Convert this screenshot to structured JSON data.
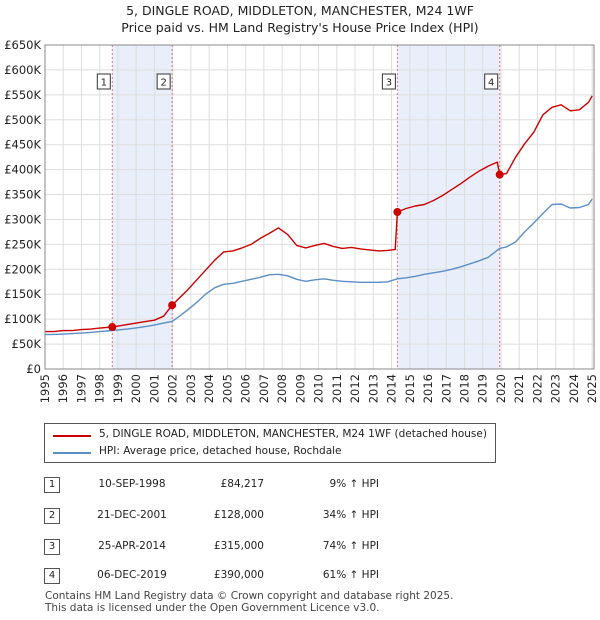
{
  "chart_data": {
    "type": "line",
    "title": "5, DINGLE ROAD, MIDDLETON, MANCHESTER, M24 1WF",
    "subtitle": "Price paid vs. HM Land Registry's House Price Index (HPI)",
    "xlim": [
      1995,
      2025.1
    ],
    "ylim": [
      0,
      650000
    ],
    "y_ticks": [
      0,
      50000,
      100000,
      150000,
      200000,
      250000,
      300000,
      350000,
      400000,
      450000,
      500000,
      550000,
      600000,
      650000
    ],
    "y_tick_labels": [
      "£0",
      "£50K",
      "£100K",
      "£150K",
      "£200K",
      "£250K",
      "£300K",
      "£350K",
      "£400K",
      "£450K",
      "£500K",
      "£550K",
      "£600K",
      "£650K"
    ],
    "x_ticks": [
      "1995",
      "1996",
      "1997",
      "1998",
      "1999",
      "2000",
      "2001",
      "2002",
      "2003",
      "2004",
      "2005",
      "2006",
      "2007",
      "2008",
      "2009",
      "2010",
      "2011",
      "2012",
      "2013",
      "2014",
      "2015",
      "2016",
      "2017",
      "2018",
      "2019",
      "2020",
      "2021",
      "2022",
      "2023",
      "2024",
      "2025"
    ],
    "grid": true,
    "colors": {
      "property": "#cc0000",
      "hpi": "#5b8fc7",
      "shade": "#e8eefa",
      "vline": "#dd7777"
    },
    "series": [
      {
        "name": "5, DINGLE ROAD, MIDDLETON, MANCHESTER, M24 1WF (detached house)",
        "x": [
          1995.0,
          1995.5,
          1996.0,
          1996.5,
          1997.0,
          1997.5,
          1998.0,
          1998.69,
          1999.0,
          1999.5,
          2000.0,
          2000.5,
          2001.0,
          2001.5,
          2001.97,
          2002.3,
          2002.8,
          2003.3,
          2003.8,
          2004.3,
          2004.8,
          2005.3,
          2005.8,
          2006.3,
          2006.8,
          2007.3,
          2007.8,
          2008.3,
          2008.8,
          2009.3,
          2009.8,
          2010.3,
          2010.8,
          2011.3,
          2011.8,
          2012.3,
          2012.8,
          2013.3,
          2013.8,
          2014.2,
          2014.32,
          2014.8,
          2015.3,
          2015.8,
          2016.3,
          2016.8,
          2017.3,
          2017.8,
          2018.3,
          2018.8,
          2019.3,
          2019.8,
          2019.93,
          2020.3,
          2020.8,
          2021.3,
          2021.8,
          2022.3,
          2022.8,
          2023.3,
          2023.8,
          2024.3,
          2024.8,
          2025.0
        ],
        "values": [
          75000,
          75000,
          77000,
          77000,
          79000,
          80000,
          82000,
          84217,
          86000,
          89000,
          92000,
          95000,
          98000,
          106000,
          128000,
          140000,
          158000,
          178000,
          198000,
          218000,
          235000,
          237000,
          243000,
          250000,
          262000,
          272000,
          283000,
          270000,
          248000,
          243000,
          248000,
          252000,
          246000,
          242000,
          244000,
          241000,
          239000,
          237000,
          238000,
          240000,
          315000,
          322000,
          327000,
          330000,
          338000,
          348000,
          360000,
          372000,
          385000,
          397000,
          407000,
          415000,
          390000,
          392000,
          425000,
          452000,
          475000,
          510000,
          525000,
          530000,
          518000,
          520000,
          535000,
          548000
        ]
      },
      {
        "name": "HPI: Average price, detached house, Rochdale",
        "x": [
          1995.0,
          1995.5,
          1996.0,
          1996.5,
          1997.0,
          1997.5,
          1998.0,
          1998.69,
          1999.0,
          1999.5,
          2000.0,
          2000.5,
          2001.0,
          2001.5,
          2001.97,
          2002.3,
          2002.8,
          2003.3,
          2003.8,
          2004.3,
          2004.8,
          2005.3,
          2005.8,
          2006.3,
          2006.8,
          2007.3,
          2007.8,
          2008.3,
          2008.8,
          2009.3,
          2009.8,
          2010.3,
          2010.8,
          2011.3,
          2011.8,
          2012.3,
          2012.8,
          2013.3,
          2013.8,
          2014.32,
          2014.8,
          2015.3,
          2015.8,
          2016.3,
          2016.8,
          2017.3,
          2017.8,
          2018.3,
          2018.8,
          2019.3,
          2019.93,
          2020.3,
          2020.8,
          2021.3,
          2021.8,
          2022.3,
          2022.8,
          2023.3,
          2023.8,
          2024.3,
          2024.8,
          2025.0
        ],
        "values": [
          69000,
          69500,
          70000,
          71000,
          72000,
          73500,
          75000,
          77300,
          78500,
          80000,
          82500,
          85000,
          88000,
          92000,
          95500,
          104000,
          118000,
          133000,
          150000,
          163000,
          170000,
          172000,
          176000,
          180000,
          184000,
          189000,
          190000,
          187000,
          180000,
          176000,
          179000,
          181000,
          178000,
          176000,
          175000,
          174000,
          174000,
          174000,
          175000,
          181000,
          183000,
          186000,
          190000,
          193000,
          196000,
          200000,
          205000,
          211000,
          217000,
          224000,
          242000,
          245000,
          255000,
          275000,
          293000,
          312000,
          330000,
          331000,
          323000,
          324000,
          330000,
          341000
        ]
      }
    ],
    "sales": [
      {
        "label": "1",
        "x": 1998.69,
        "value": 84217
      },
      {
        "label": "2",
        "x": 2001.97,
        "value": 128000
      },
      {
        "label": "3",
        "x": 2014.32,
        "value": 315000
      },
      {
        "label": "4",
        "x": 2019.93,
        "value": 390000
      }
    ],
    "shaded_spans": [
      [
        1998.69,
        2001.97
      ],
      [
        2014.32,
        2019.93
      ]
    ]
  },
  "legend": {
    "property_label": "5, DINGLE ROAD, MIDDLETON, MANCHESTER, M24 1WF (detached house)",
    "hpi_label": "HPI: Average price, detached house, Rochdale"
  },
  "transactions": [
    {
      "num": "1",
      "date": "10-SEP-1998",
      "price": "£84,217",
      "hpi": "9% ↑ HPI"
    },
    {
      "num": "2",
      "date": "21-DEC-2001",
      "price": "£128,000",
      "hpi": "34% ↑ HPI"
    },
    {
      "num": "3",
      "date": "25-APR-2014",
      "price": "£315,000",
      "hpi": "74% ↑ HPI"
    },
    {
      "num": "4",
      "date": "06-DEC-2019",
      "price": "£390,000",
      "hpi": "61% ↑ HPI"
    }
  ],
  "footer": {
    "line1": "Contains HM Land Registry data © Crown copyright and database right 2025.",
    "line2": "This data is licensed under the Open Government Licence v3.0."
  }
}
